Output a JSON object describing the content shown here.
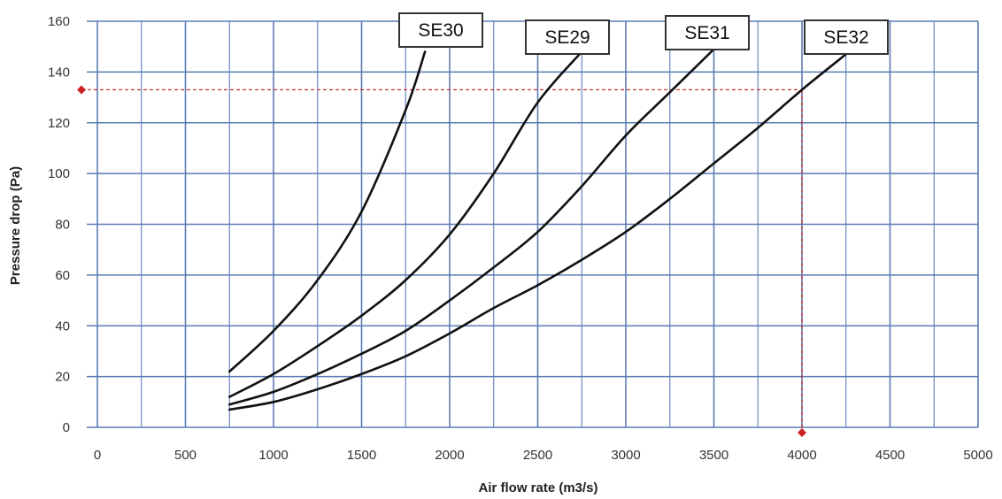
{
  "chart_data": {
    "type": "line",
    "title": "",
    "xlabel": "Air flow rate (m3/s)",
    "ylabel": "Pressure drop (Pa)",
    "xlim": [
      0,
      5000
    ],
    "ylim": [
      0,
      160
    ],
    "xticks": [
      0,
      500,
      1000,
      1500,
      2000,
      2500,
      3000,
      3500,
      4000,
      4500,
      5000
    ],
    "yticks": [
      0,
      20,
      40,
      60,
      80,
      100,
      120,
      140,
      160
    ],
    "grid": true,
    "legend": "callout labels at the top end of each curve",
    "series": [
      {
        "name": "SE30",
        "x": [
          750,
          1000,
          1250,
          1500,
          1750,
          1860
        ],
        "y": [
          22,
          38,
          58,
          85,
          125,
          148
        ]
      },
      {
        "name": "SE29",
        "x": [
          750,
          1000,
          1250,
          1500,
          1750,
          2000,
          2250,
          2500,
          2750
        ],
        "y": [
          12,
          21,
          32,
          44,
          58,
          76,
          100,
          128,
          148
        ]
      },
      {
        "name": "SE31",
        "x": [
          750,
          1000,
          1250,
          1500,
          1750,
          2000,
          2250,
          2500,
          2750,
          3000,
          3250,
          3500
        ],
        "y": [
          9,
          14,
          21,
          29,
          38,
          50,
          63,
          77,
          95,
          115,
          132,
          149
        ]
      },
      {
        "name": "SE32",
        "x": [
          750,
          1000,
          1250,
          1500,
          1750,
          2000,
          2250,
          2500,
          2750,
          3000,
          3250,
          3500,
          3750,
          4000,
          4250
        ],
        "y": [
          7,
          10,
          15,
          21,
          28,
          37,
          47,
          56,
          66,
          77,
          90,
          104,
          118,
          133,
          147
        ]
      }
    ],
    "reference": {
      "x": 4000,
      "y": 133,
      "color": "#cc2222"
    },
    "colors": {
      "grid": "#5b7bb5",
      "line": "#111111",
      "reference": "#cc2222"
    }
  }
}
